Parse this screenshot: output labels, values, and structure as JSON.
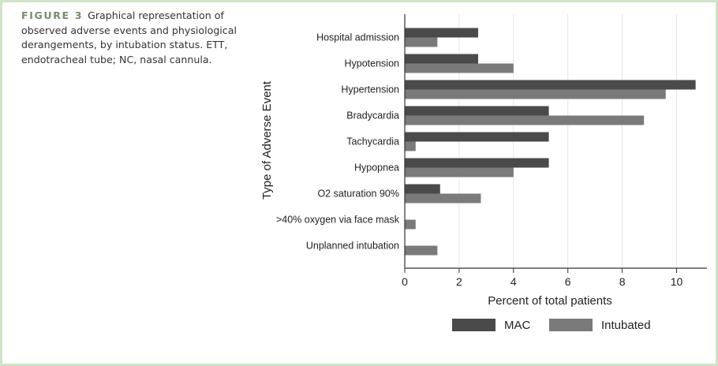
{
  "caption": {
    "label": "FIGURE 3",
    "text": "Graphical representation of observed adverse events and physiological derangements, by intubation status. ETT, endotracheal tube; NC, nasal cannula."
  },
  "colors": {
    "frame": "#cfe5c8",
    "mac": "#4a4a4a",
    "intubated": "#7a7a7a"
  },
  "chart_data": {
    "type": "bar",
    "orientation": "horizontal",
    "xlabel": "Percent of total patients",
    "ylabel": "Type of Adverse Event",
    "xlim": [
      0,
      11
    ],
    "xticks": [
      0,
      2,
      4,
      6,
      8,
      10
    ],
    "grid": "vertical",
    "legend_position": "bottom",
    "categories": [
      "Hospital admission",
      "Hypotension",
      "Hypertension",
      "Bradycardia",
      "Tachycardia",
      "Hypopnea",
      "O2 saturation 90%",
      ">40% oxygen via face mask",
      "Unplanned intubation"
    ],
    "series": [
      {
        "name": "MAC",
        "values": [
          2.7,
          2.7,
          10.7,
          5.3,
          5.3,
          5.3,
          1.3,
          0,
          0
        ]
      },
      {
        "name": "Intubated",
        "values": [
          1.2,
          4.0,
          9.6,
          8.8,
          0.4,
          4.0,
          2.8,
          0.4,
          1.2
        ]
      }
    ]
  }
}
